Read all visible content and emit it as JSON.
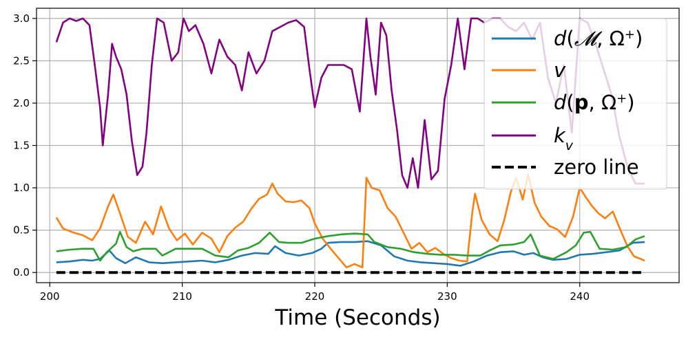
{
  "chart_data": {
    "type": "line",
    "title": "",
    "xlabel": "Time (Seconds)",
    "ylabel": "",
    "xlim": [
      199,
      247.5
    ],
    "ylim": [
      -0.12,
      3.12
    ],
    "xticks": [
      200,
      210,
      220,
      230,
      240
    ],
    "xtick_labels": [
      "200",
      "210",
      "220",
      "230",
      "240"
    ],
    "yticks": [
      0.0,
      0.5,
      1.0,
      1.5,
      2.0,
      2.5,
      3.0
    ],
    "ytick_labels": [
      "0.0",
      "0.5",
      "1.0",
      "1.5",
      "2.0",
      "2.5",
      "3.0"
    ],
    "grid": true,
    "legend_position": "top-right",
    "series": [
      {
        "name": "d(M, Ω+)",
        "legend_label": {
          "d": "d",
          "open": "(",
          "M": "𝓜",
          "comma": ", ",
          "omega": "Ω",
          "sup": "+",
          "close": ")"
        },
        "color": "#1f77b4",
        "style": "solid",
        "x": [
          200.5,
          201.5,
          202.5,
          203.2,
          203.8,
          204.5,
          205.0,
          205.7,
          206.5,
          207.5,
          208.5,
          209.5,
          210.5,
          211.5,
          212.5,
          213.5,
          214.5,
          215.5,
          216.5,
          217.0,
          217.8,
          218.8,
          219.8,
          220.5,
          221.0,
          222.0,
          223.0,
          224.0,
          225.0,
          226.0,
          227.0,
          228.0,
          229.0,
          230.0,
          231.0,
          232.0,
          233.0,
          234.0,
          235.0,
          235.8,
          236.5,
          237.2,
          238.0,
          239.0,
          240.0,
          241.0,
          242.0,
          243.0,
          244.0,
          244.9
        ],
        "y": [
          0.12,
          0.13,
          0.15,
          0.14,
          0.16,
          0.26,
          0.17,
          0.11,
          0.18,
          0.12,
          0.11,
          0.12,
          0.13,
          0.14,
          0.12,
          0.15,
          0.2,
          0.23,
          0.22,
          0.31,
          0.23,
          0.2,
          0.23,
          0.28,
          0.35,
          0.36,
          0.36,
          0.37,
          0.32,
          0.19,
          0.14,
          0.12,
          0.11,
          0.1,
          0.08,
          0.13,
          0.2,
          0.24,
          0.25,
          0.21,
          0.23,
          0.18,
          0.15,
          0.16,
          0.21,
          0.22,
          0.24,
          0.26,
          0.35,
          0.36
        ]
      },
      {
        "name": "v",
        "legend_label": {
          "text": "v"
        },
        "color": "#ff7f0e",
        "style": "solid",
        "x": [
          200.5,
          201.0,
          201.8,
          202.5,
          203.2,
          203.8,
          204.4,
          204.8,
          205.3,
          205.9,
          206.5,
          207.2,
          207.8,
          208.4,
          209.0,
          209.6,
          210.2,
          210.8,
          211.5,
          212.2,
          212.8,
          213.4,
          214.0,
          214.6,
          215.2,
          215.8,
          216.4,
          216.8,
          217.2,
          217.8,
          218.4,
          219.0,
          219.6,
          220.0,
          220.6,
          221.2,
          221.8,
          222.4,
          223.0,
          223.6,
          223.9,
          224.3,
          224.9,
          225.5,
          226.1,
          226.7,
          227.3,
          227.9,
          228.5,
          229.1,
          229.7,
          230.3,
          230.9,
          231.5,
          231.9,
          232.1,
          232.6,
          233.2,
          233.8,
          234.3,
          234.8,
          235.2,
          235.7,
          236.1,
          236.6,
          237.1,
          237.7,
          238.3,
          238.9,
          239.5,
          240.0,
          240.5,
          240.9,
          241.4,
          241.9,
          242.5,
          243.1,
          243.6,
          244.1,
          244.6,
          244.9
        ],
        "y": [
          0.65,
          0.52,
          0.47,
          0.44,
          0.38,
          0.52,
          0.78,
          0.92,
          0.7,
          0.42,
          0.35,
          0.6,
          0.45,
          0.78,
          0.52,
          0.38,
          0.46,
          0.33,
          0.47,
          0.4,
          0.24,
          0.43,
          0.53,
          0.6,
          0.75,
          0.87,
          0.92,
          1.05,
          0.93,
          0.84,
          0.83,
          0.85,
          0.76,
          0.58,
          0.4,
          0.28,
          0.17,
          0.06,
          0.1,
          0.06,
          1.12,
          1.0,
          0.97,
          0.76,
          0.66,
          0.47,
          0.28,
          0.35,
          0.24,
          0.29,
          0.22,
          0.17,
          0.14,
          0.13,
          0.72,
          0.93,
          0.62,
          0.45,
          0.37,
          0.62,
          0.95,
          1.12,
          0.86,
          1.16,
          0.82,
          0.66,
          0.55,
          0.51,
          0.42,
          0.66,
          1.0,
          0.88,
          0.79,
          0.7,
          0.64,
          0.72,
          0.49,
          0.31,
          0.19,
          0.16,
          0.14
        ]
      },
      {
        "name": "d(p, Ω+)",
        "legend_label": {
          "d": "d",
          "open": "(",
          "p": "p",
          "comma": ", ",
          "omega": "Ω",
          "sup": "+",
          "close": ")"
        },
        "color": "#2ca02c",
        "style": "solid",
        "x": [
          200.5,
          201.5,
          202.5,
          203.3,
          203.8,
          204.3,
          205.0,
          205.3,
          205.8,
          206.3,
          207.0,
          208.0,
          208.5,
          209.5,
          210.5,
          211.5,
          212.5,
          213.5,
          214.2,
          215.0,
          215.8,
          216.6,
          217.3,
          218.0,
          219.0,
          220.0,
          221.0,
          222.0,
          223.0,
          224.0,
          224.5,
          225.5,
          226.5,
          227.5,
          228.5,
          229.5,
          230.5,
          231.5,
          232.5,
          233.2,
          234.0,
          235.0,
          235.8,
          236.3,
          237.0,
          238.0,
          239.0,
          239.7,
          240.3,
          240.8,
          241.5,
          242.5,
          243.5,
          244.2,
          244.9
        ],
        "y": [
          0.25,
          0.27,
          0.28,
          0.28,
          0.14,
          0.24,
          0.34,
          0.48,
          0.3,
          0.25,
          0.28,
          0.28,
          0.2,
          0.28,
          0.28,
          0.28,
          0.2,
          0.18,
          0.26,
          0.29,
          0.35,
          0.47,
          0.36,
          0.35,
          0.35,
          0.4,
          0.43,
          0.45,
          0.46,
          0.45,
          0.36,
          0.3,
          0.28,
          0.24,
          0.22,
          0.21,
          0.21,
          0.2,
          0.2,
          0.26,
          0.32,
          0.33,
          0.36,
          0.45,
          0.2,
          0.16,
          0.24,
          0.32,
          0.47,
          0.48,
          0.28,
          0.27,
          0.3,
          0.39,
          0.43
        ]
      },
      {
        "name": "k_v",
        "legend_label": {
          "k": "k",
          "sub": "v"
        },
        "color": "#800080",
        "style": "solid",
        "x": [
          200.5,
          201.0,
          201.5,
          202.0,
          202.5,
          203.0,
          203.4,
          203.8,
          204.0,
          204.4,
          204.7,
          205.0,
          205.4,
          205.8,
          206.2,
          206.6,
          207.0,
          207.3,
          207.7,
          208.1,
          208.6,
          209.2,
          209.7,
          210.1,
          210.5,
          211.0,
          211.6,
          212.2,
          212.8,
          213.4,
          214.0,
          214.5,
          215.0,
          215.6,
          216.2,
          216.8,
          217.4,
          218.0,
          218.6,
          219.2,
          219.6,
          220.0,
          220.5,
          221.0,
          221.6,
          222.2,
          222.8,
          223.4,
          223.9,
          224.2,
          224.6,
          225.0,
          225.4,
          225.8,
          226.2,
          226.6,
          227.0,
          227.4,
          227.8,
          228.3,
          228.8,
          229.3,
          229.8,
          230.3,
          230.8,
          231.3,
          231.8,
          232.3,
          232.8,
          233.4,
          234.0,
          234.6,
          235.2,
          235.8,
          236.4,
          237.0,
          237.6,
          238.2,
          238.8,
          239.4,
          240.0,
          240.6,
          241.2,
          241.8,
          242.4,
          243.0,
          243.6,
          244.2,
          244.9
        ],
        "y": [
          2.72,
          2.95,
          3.0,
          2.97,
          3.0,
          2.92,
          2.45,
          1.95,
          1.5,
          2.1,
          2.7,
          2.55,
          2.4,
          2.1,
          1.55,
          1.15,
          1.25,
          1.65,
          2.45,
          3.0,
          2.95,
          2.5,
          2.6,
          3.0,
          2.85,
          2.92,
          2.7,
          2.35,
          2.75,
          2.55,
          2.45,
          2.15,
          2.6,
          2.35,
          2.5,
          2.85,
          2.9,
          2.95,
          2.98,
          2.9,
          2.4,
          1.95,
          2.3,
          2.45,
          2.45,
          2.45,
          2.4,
          1.9,
          3.0,
          2.55,
          2.1,
          2.95,
          2.8,
          2.15,
          1.7,
          1.15,
          1.0,
          1.35,
          1.0,
          1.8,
          1.1,
          1.2,
          2.05,
          2.45,
          3.0,
          2.4,
          3.0,
          3.0,
          2.95,
          3.0,
          3.0,
          2.9,
          2.85,
          2.95,
          2.75,
          2.95,
          2.3,
          2.0,
          2.45,
          1.65,
          3.0,
          2.95,
          2.7,
          2.4,
          2.1,
          1.6,
          1.25,
          1.05,
          1.05
        ]
      },
      {
        "name": "zero line",
        "legend_label": {
          "text": "zero line"
        },
        "color": "#000000",
        "style": "dashed",
        "x": [
          200.5,
          244.9
        ],
        "y": [
          0.0,
          0.0
        ]
      }
    ]
  }
}
